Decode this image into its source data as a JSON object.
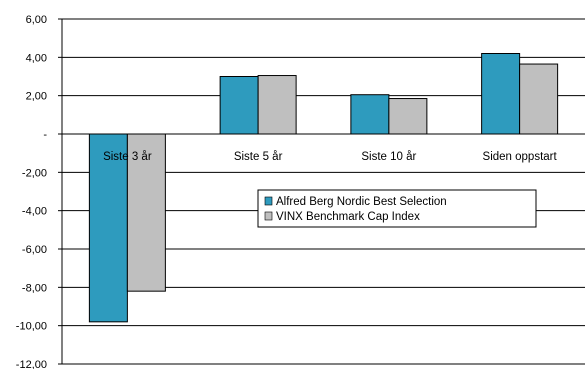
{
  "chart_data": {
    "type": "bar",
    "title": "",
    "xlabel": "",
    "ylabel": "",
    "categories": [
      "Siste 3 år",
      "Siste 5 år",
      "Siste 10 år",
      "Siden oppstart"
    ],
    "series": [
      {
        "name": "Alfred Berg Nordic Best Selection",
        "color": "#2e9bbe",
        "values": [
          -9.8,
          3.0,
          2.05,
          4.2
        ]
      },
      {
        "name": "VINX Benchmark Cap Index",
        "color": "#bfbfbf",
        "values": [
          -8.2,
          3.05,
          1.85,
          3.65
        ]
      }
    ],
    "ylim": [
      -12,
      6
    ],
    "yticks": [
      6,
      4,
      2,
      0,
      -2,
      -4,
      -6,
      -8,
      -10,
      -12
    ],
    "ytick_labels": [
      "6,00",
      "4,00",
      "2,00",
      "-",
      "-2,00",
      "-4,00",
      "-6,00",
      "-8,00",
      "-10,00",
      "-12,00"
    ],
    "grid": true,
    "legend_position": "center-right"
  }
}
